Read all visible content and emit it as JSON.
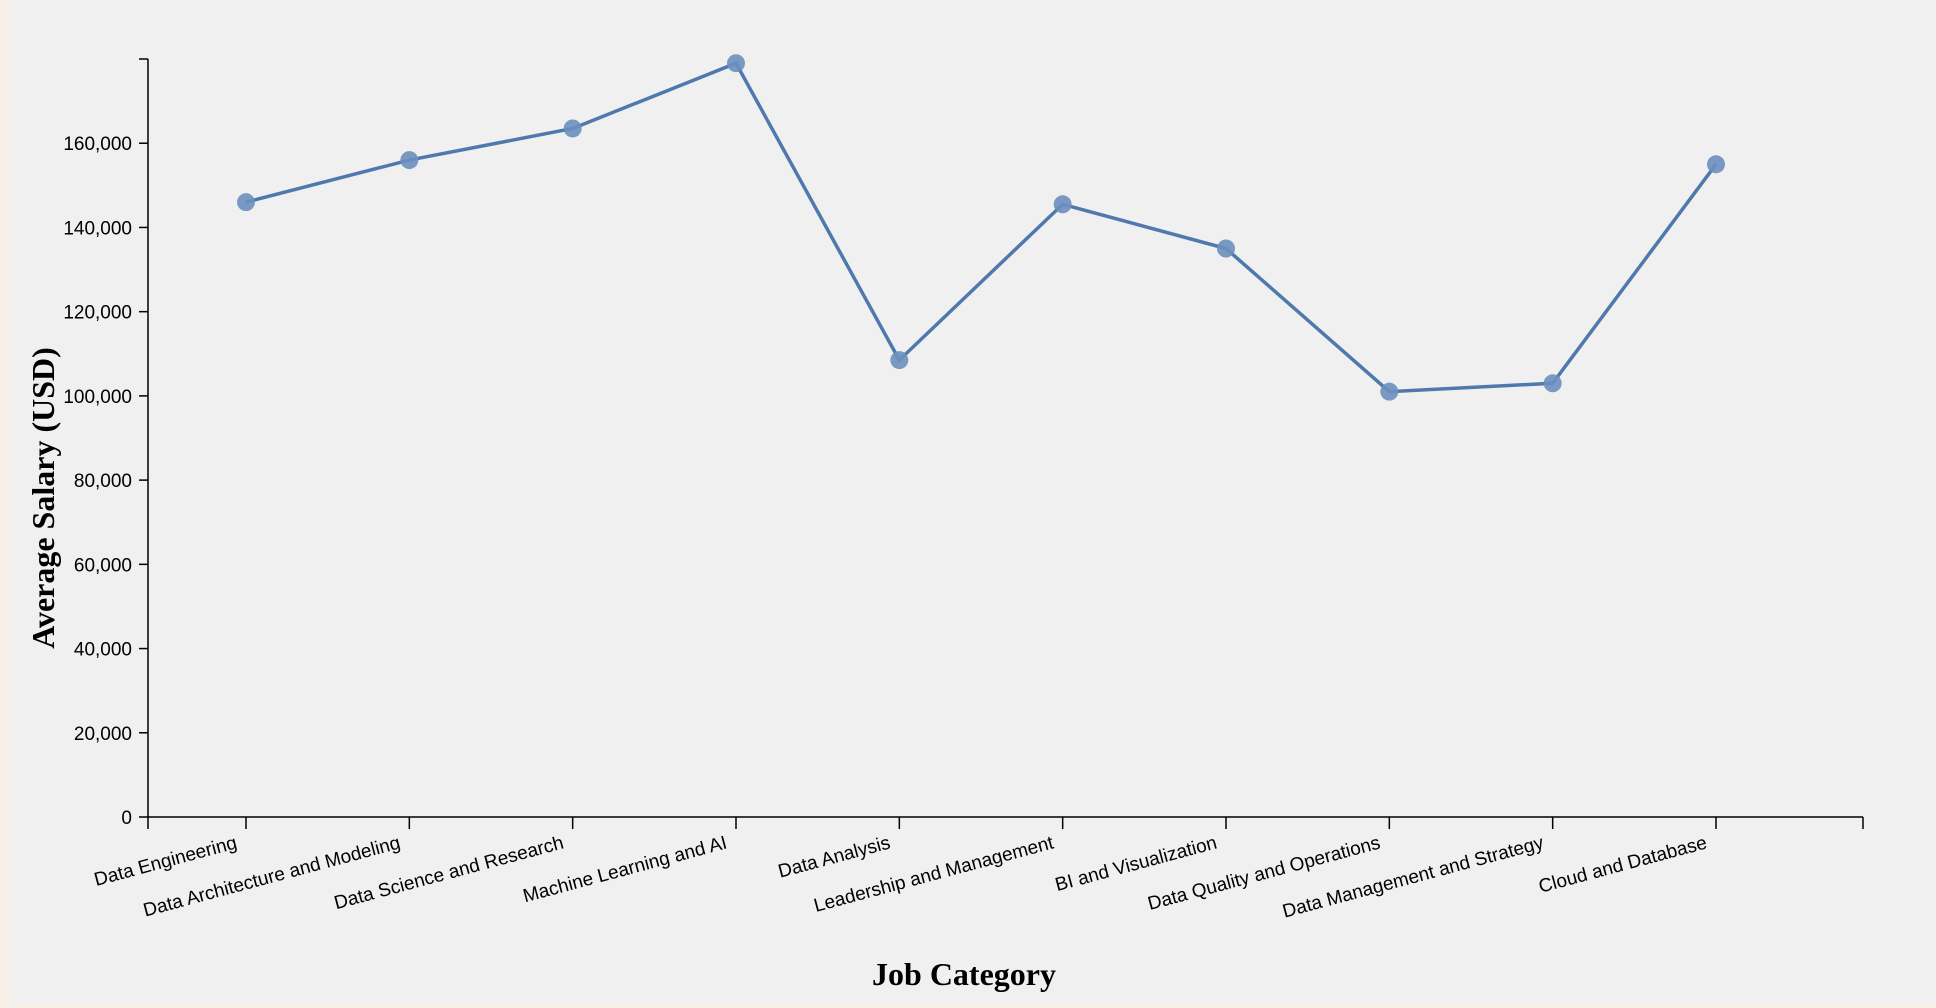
{
  "chart_data": {
    "type": "line",
    "title": "",
    "xlabel": "Job Category",
    "ylabel": "Average Salary (USD)",
    "ylim": [
      0,
      180000
    ],
    "yticks": [
      0,
      20000,
      40000,
      60000,
      80000,
      100000,
      120000,
      140000,
      160000
    ],
    "ytick_labels": [
      "0",
      "20,000",
      "40,000",
      "60,000",
      "80,000",
      "100,000",
      "120,000",
      "140,000",
      "160,000"
    ],
    "categories": [
      "Data Engineering",
      "Data Architecture and Modeling",
      "Data Science and Research",
      "Machine Learning and AI",
      "Data Analysis",
      "Leadership and Management",
      "BI and Visualization",
      "Data Quality and Operations",
      "Data Management and Strategy",
      "Cloud and Database"
    ],
    "values": [
      146000,
      156000,
      163500,
      179000,
      108500,
      145500,
      135000,
      101000,
      103000,
      155000
    ],
    "grid": false,
    "legend": "none",
    "colors": {
      "line": "#4f79ad",
      "marker": "#6c8fbe"
    }
  }
}
